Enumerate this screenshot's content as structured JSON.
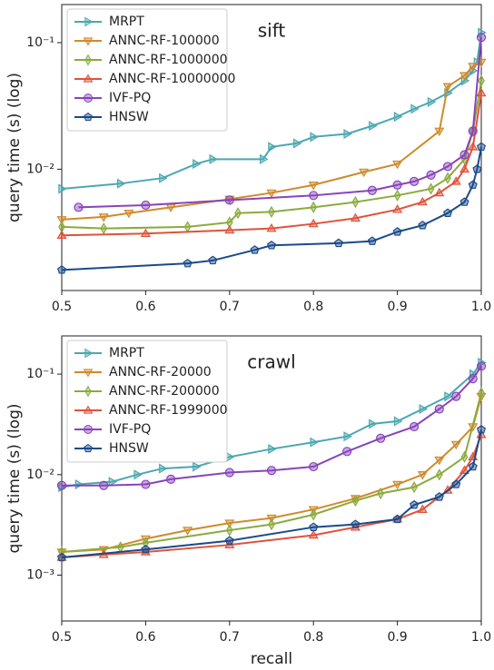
{
  "chart_data": [
    {
      "type": "line",
      "annotation": "sift",
      "ylabel": "query time (s) (log)",
      "yscale": "log",
      "legend": "upper left",
      "xlim": [
        0.5,
        1.0
      ],
      "xticks": [
        0.5,
        0.6,
        0.7,
        0.8,
        0.9,
        {
          "value": 1.0,
          "label": "1.0"
        }
      ],
      "ylim": [
        0.0011,
        0.2
      ],
      "yticks": [
        {
          "value": 0.01,
          "label": "10⁻²"
        },
        {
          "value": 0.1,
          "label": "10⁻¹"
        }
      ],
      "series": [
        {
          "name": "MRPT",
          "color": "#4aa8b0",
          "marker": "triangle-right",
          "x": [
            0.5,
            0.57,
            0.62,
            0.66,
            0.68,
            0.74,
            0.75,
            0.78,
            0.8,
            0.84,
            0.87,
            0.9,
            0.92,
            0.94,
            0.96,
            0.98,
            0.99,
            0.995,
            1.0
          ],
          "values": [
            0.007,
            0.0077,
            0.0085,
            0.011,
            0.012,
            0.012,
            0.015,
            0.016,
            0.018,
            0.019,
            0.022,
            0.026,
            0.03,
            0.034,
            0.04,
            0.05,
            0.06,
            0.07,
            0.12
          ]
        },
        {
          "name": "ANNC-RF-100000",
          "color": "#d08a2a",
          "marker": "triangle-down",
          "x": [
            0.5,
            0.55,
            0.58,
            0.63,
            0.7,
            0.75,
            0.8,
            0.86,
            0.9,
            0.95,
            0.96,
            0.98,
            0.99,
            1.0
          ],
          "values": [
            0.004,
            0.0042,
            0.0045,
            0.005,
            0.0058,
            0.0065,
            0.0075,
            0.0095,
            0.011,
            0.02,
            0.045,
            0.055,
            0.065,
            0.07
          ]
        },
        {
          "name": "ANNC-RF-1000000",
          "color": "#8aab3c",
          "marker": "diamond",
          "x": [
            0.5,
            0.55,
            0.65,
            0.7,
            0.71,
            0.75,
            0.8,
            0.85,
            0.9,
            0.94,
            0.96,
            0.98,
            0.99,
            1.0
          ],
          "values": [
            0.0035,
            0.0034,
            0.0035,
            0.0038,
            0.0045,
            0.0046,
            0.005,
            0.0055,
            0.0062,
            0.007,
            0.0085,
            0.012,
            0.02,
            0.05
          ]
        },
        {
          "name": "ANNC-RF-10000000",
          "color": "#e0523a",
          "marker": "triangle-up",
          "x": [
            0.5,
            0.6,
            0.7,
            0.75,
            0.8,
            0.85,
            0.9,
            0.93,
            0.95,
            0.97,
            0.98,
            0.99,
            1.0
          ],
          "values": [
            0.003,
            0.0031,
            0.0033,
            0.0034,
            0.0037,
            0.0041,
            0.0048,
            0.0055,
            0.0065,
            0.008,
            0.01,
            0.015,
            0.04
          ]
        },
        {
          "name": "IVF-PQ",
          "color": "#8844bb",
          "marker": "circle",
          "x": [
            0.52,
            0.6,
            0.7,
            0.8,
            0.87,
            0.9,
            0.92,
            0.94,
            0.96,
            0.98,
            0.99,
            1.0
          ],
          "values": [
            0.005,
            0.0052,
            0.0057,
            0.0062,
            0.0068,
            0.0075,
            0.008,
            0.009,
            0.0105,
            0.013,
            0.02,
            0.11
          ]
        },
        {
          "name": "HNSW",
          "color": "#1a4a8a",
          "marker": "pentagon",
          "x": [
            0.5,
            0.65,
            0.68,
            0.73,
            0.75,
            0.83,
            0.87,
            0.9,
            0.93,
            0.96,
            0.98,
            0.99,
            0.995,
            1.0
          ],
          "values": [
            0.0016,
            0.0018,
            0.0019,
            0.0023,
            0.0025,
            0.0026,
            0.0027,
            0.0032,
            0.0036,
            0.0045,
            0.0055,
            0.0075,
            0.01,
            0.015
          ]
        }
      ]
    },
    {
      "type": "line",
      "annotation": "crawl",
      "ylabel": "query time (s) (log)",
      "xlabel": "recall",
      "yscale": "log",
      "legend": "upper left",
      "xlim": [
        0.5,
        1.0
      ],
      "xticks": [
        0.5,
        0.6,
        0.7,
        0.8,
        0.9,
        {
          "value": 1.0,
          "label": "1.0"
        }
      ],
      "ylim": [
        0.00035,
        0.24
      ],
      "yticks": [
        {
          "value": 0.001,
          "label": "10⁻³"
        },
        {
          "value": 0.01,
          "label": "10⁻²"
        },
        {
          "value": 0.1,
          "label": "10⁻¹"
        }
      ],
      "series": [
        {
          "name": "MRPT",
          "color": "#4aa8b0",
          "marker": "triangle-right",
          "x": [
            0.5,
            0.52,
            0.56,
            0.59,
            0.62,
            0.66,
            0.7,
            0.75,
            0.8,
            0.84,
            0.87,
            0.9,
            0.93,
            0.96,
            0.99,
            1.0
          ],
          "values": [
            0.0075,
            0.008,
            0.0085,
            0.01,
            0.0115,
            0.012,
            0.015,
            0.018,
            0.021,
            0.024,
            0.032,
            0.034,
            0.045,
            0.06,
            0.1,
            0.13
          ]
        },
        {
          "name": "ANNC-RF-20000",
          "color": "#d08a2a",
          "marker": "triangle-down",
          "x": [
            0.5,
            0.55,
            0.6,
            0.65,
            0.7,
            0.75,
            0.8,
            0.85,
            0.9,
            0.93,
            0.95,
            0.97,
            0.99,
            1.0
          ],
          "values": [
            0.0017,
            0.0018,
            0.0023,
            0.0028,
            0.0033,
            0.0037,
            0.0045,
            0.0058,
            0.008,
            0.01,
            0.014,
            0.02,
            0.03,
            0.06
          ]
        },
        {
          "name": "ANNC-RF-200000",
          "color": "#8aab3c",
          "marker": "diamond",
          "x": [
            0.5,
            0.57,
            0.6,
            0.7,
            0.75,
            0.8,
            0.85,
            0.88,
            0.92,
            0.95,
            0.98,
            1.0
          ],
          "values": [
            0.0017,
            0.0019,
            0.0021,
            0.0028,
            0.0032,
            0.004,
            0.0055,
            0.0065,
            0.0075,
            0.01,
            0.015,
            0.065
          ]
        },
        {
          "name": "ANNC-RF-1999000",
          "color": "#e0523a",
          "marker": "triangle-up",
          "x": [
            0.5,
            0.55,
            0.6,
            0.7,
            0.8,
            0.85,
            0.9,
            0.93,
            0.96,
            0.98,
            0.99,
            1.0
          ],
          "values": [
            0.0015,
            0.0016,
            0.0017,
            0.002,
            0.0025,
            0.003,
            0.0036,
            0.0045,
            0.007,
            0.011,
            0.015,
            0.025
          ]
        },
        {
          "name": "IVF-PQ",
          "color": "#8844bb",
          "marker": "circle",
          "x": [
            0.5,
            0.55,
            0.6,
            0.63,
            0.7,
            0.75,
            0.8,
            0.84,
            0.88,
            0.92,
            0.95,
            0.97,
            0.99,
            1.0
          ],
          "values": [
            0.0078,
            0.0078,
            0.008,
            0.009,
            0.0105,
            0.011,
            0.012,
            0.017,
            0.023,
            0.03,
            0.045,
            0.06,
            0.09,
            0.12
          ]
        },
        {
          "name": "HNSW",
          "color": "#1a4a8a",
          "marker": "pentagon",
          "x": [
            0.5,
            0.6,
            0.7,
            0.8,
            0.85,
            0.9,
            0.92,
            0.95,
            0.97,
            0.99,
            1.0
          ],
          "values": [
            0.0015,
            0.0018,
            0.0022,
            0.003,
            0.0032,
            0.0036,
            0.005,
            0.006,
            0.008,
            0.012,
            0.028
          ]
        }
      ]
    }
  ]
}
